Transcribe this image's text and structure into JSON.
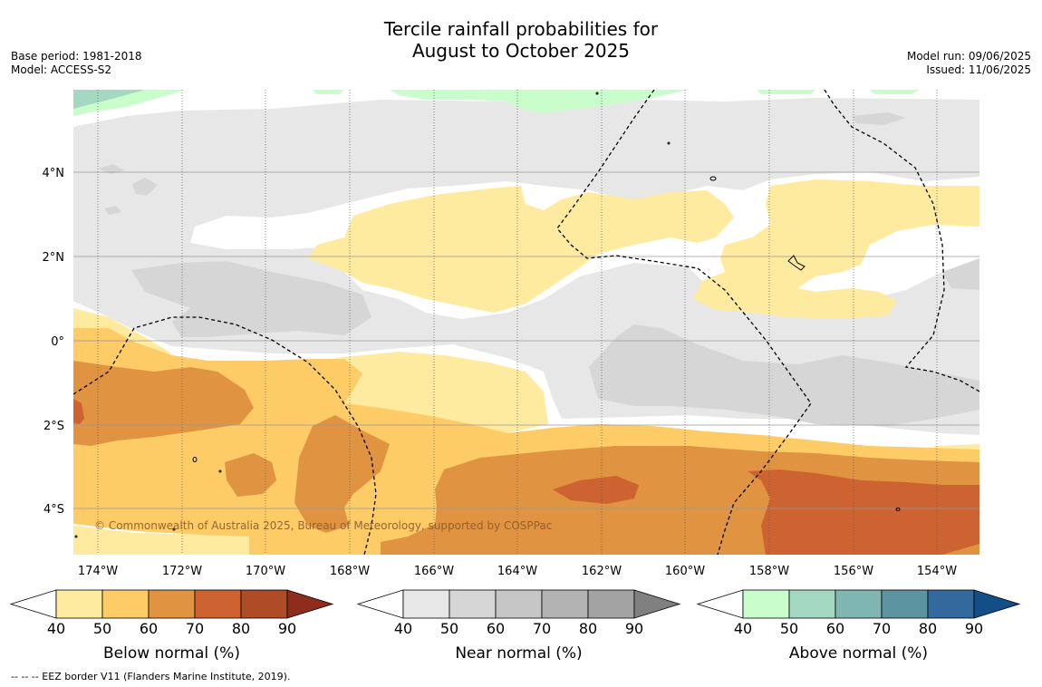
{
  "title": {
    "line1": "Tercile rainfall probabilities for",
    "line2": "August to October 2025"
  },
  "meta_left": {
    "base_period": "Base period: 1981-2018",
    "model": "Model: ACCESS-S2"
  },
  "meta_right": {
    "model_run": "Model run: 09/06/2025",
    "issued": "Issued: 11/06/2025"
  },
  "map": {
    "copyright": "© Commonwealth of Australia 2025, Bureau of Meteorology, supported by COSPPac",
    "lat_labels": [
      "4°N",
      "2°N",
      "0°",
      "2°S",
      "4°S"
    ],
    "lon_labels": [
      "174°W",
      "172°W",
      "170°W",
      "168°W",
      "166°W",
      "164°W",
      "162°W",
      "160°W",
      "158°W",
      "156°W",
      "154°W"
    ],
    "colors": {
      "grid": "#999999",
      "land": "#000000",
      "eez": "#000000"
    }
  },
  "legends": [
    {
      "id": "below",
      "label": "Below normal (%)",
      "ticks": [
        "40",
        "50",
        "60",
        "70",
        "80",
        "90"
      ],
      "colors": [
        "#ffffff",
        "#ffeb9f",
        "#fecc66",
        "#e09442",
        "#cc6330",
        "#ae4c28",
        "#8f2d1c"
      ]
    },
    {
      "id": "near",
      "label": "Near normal (%)",
      "ticks": [
        "40",
        "50",
        "60",
        "70",
        "80",
        "90"
      ],
      "colors": [
        "#ffffff",
        "#e7e7e7",
        "#d6d6d6",
        "#c6c6c6",
        "#b3b3b3",
        "#a3a3a3",
        "#808080"
      ]
    },
    {
      "id": "above",
      "label": "Above normal (%)",
      "ticks": [
        "40",
        "50",
        "60",
        "70",
        "80",
        "90"
      ],
      "colors": [
        "#ffffff",
        "#c9fdcc",
        "#a5d8c0",
        "#80b6b2",
        "#5c93a0",
        "#33699d",
        "#144e88"
      ]
    }
  ],
  "footer": {
    "eez_note": "--  --  -- EEZ border V11 (Flanders Marine Institute, 2019)."
  }
}
